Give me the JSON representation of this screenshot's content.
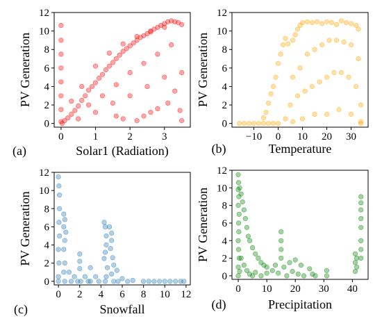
{
  "chart_data": [
    {
      "id": "a",
      "type": "scatter",
      "panel_label": "(a)",
      "xlabel": "Solar1 (Radiation)",
      "ylabel": "PV Generation",
      "xticks": [
        0,
        1,
        2,
        3
      ],
      "yticks": [
        0,
        2,
        4,
        6,
        8,
        10,
        12
      ],
      "xlim": [
        -0.2,
        3.75
      ],
      "ylim": [
        -0.4,
        12
      ],
      "color": "#ff0000",
      "points": [
        [
          0.0,
          10.6
        ],
        [
          0.0,
          9.0
        ],
        [
          0.0,
          7.5
        ],
        [
          0.0,
          6.0
        ],
        [
          0.0,
          4.5
        ],
        [
          0.0,
          3.0
        ],
        [
          0.0,
          1.5
        ],
        [
          0.0,
          0.2
        ],
        [
          0.03,
          0.0
        ],
        [
          0.1,
          0.3
        ],
        [
          0.2,
          0.6
        ],
        [
          0.3,
          1.0
        ],
        [
          0.4,
          1.4
        ],
        [
          0.5,
          1.9
        ],
        [
          0.6,
          2.5
        ],
        [
          0.7,
          3.0
        ],
        [
          0.8,
          3.6
        ],
        [
          0.9,
          4.0
        ],
        [
          1.0,
          4.4
        ],
        [
          1.1,
          4.9
        ],
        [
          1.2,
          5.3
        ],
        [
          1.3,
          5.8
        ],
        [
          1.4,
          6.2
        ],
        [
          1.5,
          6.6
        ],
        [
          1.6,
          7.0
        ],
        [
          1.7,
          7.4
        ],
        [
          1.8,
          7.8
        ],
        [
          1.9,
          8.1
        ],
        [
          2.0,
          8.4
        ],
        [
          2.1,
          8.7
        ],
        [
          2.2,
          9.0
        ],
        [
          2.3,
          9.3
        ],
        [
          2.4,
          9.5
        ],
        [
          2.5,
          9.7
        ],
        [
          2.6,
          9.9
        ],
        [
          2.7,
          10.2
        ],
        [
          2.8,
          10.4
        ],
        [
          2.9,
          10.6
        ],
        [
          3.0,
          10.8
        ],
        [
          3.1,
          11.0
        ],
        [
          3.2,
          11.1
        ],
        [
          3.3,
          11.0
        ],
        [
          3.4,
          10.9
        ],
        [
          3.5,
          10.7
        ],
        [
          0.5,
          0.5
        ],
        [
          1.0,
          1.2
        ],
        [
          1.5,
          2.2
        ],
        [
          2.0,
          3.0
        ],
        [
          2.5,
          4.0
        ],
        [
          3.0,
          5.0
        ],
        [
          3.5,
          5.5
        ],
        [
          3.3,
          3.5
        ],
        [
          3.45,
          1.4
        ],
        [
          3.5,
          0.3
        ],
        [
          1.6,
          0.8
        ],
        [
          1.8,
          0.5
        ],
        [
          2.2,
          0.3
        ],
        [
          2.4,
          0.8
        ],
        [
          2.6,
          1.2
        ],
        [
          2.8,
          1.6
        ],
        [
          3.1,
          2.2
        ],
        [
          0.8,
          2.0
        ],
        [
          1.2,
          3.0
        ],
        [
          1.6,
          4.2
        ],
        [
          2.0,
          5.5
        ],
        [
          2.4,
          6.5
        ],
        [
          2.8,
          7.5
        ],
        [
          3.2,
          8.5
        ],
        [
          0.3,
          2.4
        ],
        [
          0.6,
          4.0
        ],
        [
          1.0,
          6.2
        ],
        [
          1.4,
          7.6
        ],
        [
          1.8,
          8.6
        ],
        [
          2.2,
          9.4
        ],
        [
          2.6,
          10.0
        ],
        [
          3.0,
          10.4
        ]
      ]
    },
    {
      "id": "b",
      "type": "scatter",
      "panel_label": "(b)",
      "xlabel": "Temperature",
      "ylabel": "PV Generation",
      "xticks": [
        -10,
        0,
        10,
        20,
        30
      ],
      "yticks": [
        0,
        2,
        4,
        6,
        8,
        10,
        12
      ],
      "xlim": [
        -19,
        37
      ],
      "ylim": [
        -0.4,
        12
      ],
      "color": "#ffa500",
      "points": [
        [
          -16,
          0.0
        ],
        [
          -14,
          0.0
        ],
        [
          -12,
          0.0
        ],
        [
          -10,
          0.0
        ],
        [
          -8,
          0.0
        ],
        [
          -6,
          0.0
        ],
        [
          -4,
          0.0
        ],
        [
          -2,
          0.0
        ],
        [
          0,
          0.0
        ],
        [
          -6,
          0.6
        ],
        [
          -5,
          1.2
        ],
        [
          -4,
          2.2
        ],
        [
          -3,
          3.2
        ],
        [
          -2,
          4.0
        ],
        [
          -1,
          5.0
        ],
        [
          0,
          6.5
        ],
        [
          1,
          7.5
        ],
        [
          2,
          8.5
        ],
        [
          3,
          9.2
        ],
        [
          4,
          8.6
        ],
        [
          6,
          9.0
        ],
        [
          7,
          9.6
        ],
        [
          8,
          10.2
        ],
        [
          9,
          10.6
        ],
        [
          10,
          10.9
        ],
        [
          12,
          11.0
        ],
        [
          14,
          10.9
        ],
        [
          16,
          11.0
        ],
        [
          18,
          10.8
        ],
        [
          20,
          11.0
        ],
        [
          22,
          10.9
        ],
        [
          24,
          10.7
        ],
        [
          26,
          11.1
        ],
        [
          28,
          10.9
        ],
        [
          30,
          10.8
        ],
        [
          32,
          10.6
        ],
        [
          33,
          10.2
        ],
        [
          6,
          5.0
        ],
        [
          9,
          6.0
        ],
        [
          12,
          7.5
        ],
        [
          15,
          8.0
        ],
        [
          18,
          8.5
        ],
        [
          21,
          9.0
        ],
        [
          24,
          9.0
        ],
        [
          27,
          8.8
        ],
        [
          30,
          8.5
        ],
        [
          33,
          7.0
        ],
        [
          5,
          2.0
        ],
        [
          8,
          3.0
        ],
        [
          11,
          3.5
        ],
        [
          14,
          4.0
        ],
        [
          17,
          4.5
        ],
        [
          20,
          5.0
        ],
        [
          23,
          5.5
        ],
        [
          26,
          5.5
        ],
        [
          29,
          5.0
        ],
        [
          32,
          4.0
        ],
        [
          34,
          2.0
        ],
        [
          3,
          0.5
        ],
        [
          6,
          0.2
        ],
        [
          10,
          0.5
        ],
        [
          15,
          1.0
        ],
        [
          20,
          1.0
        ],
        [
          25,
          1.5
        ],
        [
          30,
          1.0
        ],
        [
          34,
          0.2
        ],
        [
          34,
          0.0
        ]
      ]
    },
    {
      "id": "c",
      "type": "scatter",
      "panel_label": "(c)",
      "xlabel": "Snowfall",
      "ylabel": "PV Generation",
      "xticks": [
        0,
        2,
        4,
        6,
        8,
        10,
        12
      ],
      "yticks": [
        0,
        2,
        4,
        6,
        8,
        10,
        12
      ],
      "xlim": [
        -0.4,
        12.4
      ],
      "ylim": [
        -0.4,
        12
      ],
      "color": "#1f77b4",
      "points": [
        [
          0.0,
          11.5
        ],
        [
          0.05,
          10.5
        ],
        [
          0.1,
          9.5
        ],
        [
          0.1,
          8.0
        ],
        [
          0.05,
          6.5
        ],
        [
          0.1,
          5.0
        ],
        [
          0.0,
          3.5
        ],
        [
          0.05,
          2.0
        ],
        [
          0.0,
          0.5
        ],
        [
          0.0,
          0.0
        ],
        [
          0.5,
          7.4
        ],
        [
          0.6,
          6.8
        ],
        [
          0.5,
          6.0
        ],
        [
          0.7,
          5.4
        ],
        [
          0.6,
          4.5
        ],
        [
          0.5,
          3.5
        ],
        [
          0.6,
          2.0
        ],
        [
          0.5,
          1.0
        ],
        [
          0.6,
          0.0
        ],
        [
          1.0,
          1.0
        ],
        [
          1.2,
          0.0
        ],
        [
          1.5,
          0.5
        ],
        [
          1.8,
          0.0
        ],
        [
          2.0,
          3.0
        ],
        [
          2.0,
          2.2
        ],
        [
          2.0,
          1.4
        ],
        [
          2.1,
          0.0
        ],
        [
          2.5,
          0.5
        ],
        [
          2.8,
          0.0
        ],
        [
          3.0,
          1.5
        ],
        [
          3.0,
          0.0
        ],
        [
          3.5,
          0.5
        ],
        [
          3.8,
          0.0
        ],
        [
          4.3,
          6.5
        ],
        [
          4.4,
          6.0
        ],
        [
          4.5,
          5.0
        ],
        [
          4.5,
          4.0
        ],
        [
          4.4,
          3.2
        ],
        [
          4.3,
          2.5
        ],
        [
          4.6,
          1.5
        ],
        [
          4.5,
          0.5
        ],
        [
          4.4,
          0.0
        ],
        [
          4.8,
          6.0
        ],
        [
          5.0,
          5.3
        ],
        [
          5.0,
          4.5
        ],
        [
          4.9,
          3.6
        ],
        [
          5.1,
          2.6
        ],
        [
          5.2,
          1.8
        ],
        [
          5.0,
          0.8
        ],
        [
          5.2,
          0.0
        ],
        [
          5.5,
          1.2
        ],
        [
          5.6,
          0.0
        ],
        [
          6.0,
          0.3
        ],
        [
          6.5,
          0.0
        ],
        [
          7.0,
          0.1
        ],
        [
          8.0,
          0.0
        ],
        [
          8.5,
          0.0
        ],
        [
          9.0,
          0.0
        ],
        [
          9.5,
          0.0
        ],
        [
          10.0,
          0.0
        ],
        [
          10.5,
          0.0
        ],
        [
          11.0,
          0.0
        ],
        [
          11.5,
          0.0
        ],
        [
          11.8,
          0.0
        ]
      ]
    },
    {
      "id": "d",
      "type": "scatter",
      "panel_label": "(d)",
      "xlabel": "Precipitation",
      "ylabel": "PV Generation",
      "xticks": [
        0,
        10,
        20,
        30,
        40
      ],
      "yticks": [
        0,
        2,
        4,
        6,
        8,
        10,
        12
      ],
      "xlim": [
        -2.2,
        45.5
      ],
      "ylim": [
        -0.4,
        12
      ],
      "color": "#008000",
      "points": [
        [
          0.0,
          11.5
        ],
        [
          0.1,
          10.6
        ],
        [
          0.0,
          9.8
        ],
        [
          0.2,
          9.0
        ],
        [
          0.0,
          8.0
        ],
        [
          0.3,
          7.0
        ],
        [
          0.1,
          6.0
        ],
        [
          0.2,
          5.0
        ],
        [
          0.0,
          4.0
        ],
        [
          0.1,
          3.0
        ],
        [
          0.3,
          2.0
        ],
        [
          0.0,
          1.0
        ],
        [
          0.0,
          0.0
        ],
        [
          0.5,
          0.5
        ],
        [
          0.5,
          10.0
        ],
        [
          1.0,
          9.3
        ],
        [
          1.5,
          8.4
        ],
        [
          2.0,
          7.5
        ],
        [
          2.5,
          6.5
        ],
        [
          3.0,
          5.5
        ],
        [
          3.5,
          4.5
        ],
        [
          4.0,
          4.0
        ],
        [
          5.0,
          3.2
        ],
        [
          6.0,
          2.5
        ],
        [
          7.0,
          2.0
        ],
        [
          8.0,
          1.5
        ],
        [
          9.0,
          1.2
        ],
        [
          10.0,
          1.0
        ],
        [
          1.0,
          2.0
        ],
        [
          2.0,
          1.2
        ],
        [
          3.0,
          0.6
        ],
        [
          4.0,
          0.2
        ],
        [
          5.0,
          0.0
        ],
        [
          6.0,
          0.4
        ],
        [
          8.0,
          0.0
        ],
        [
          10.0,
          0.3
        ],
        [
          12.0,
          0.6
        ],
        [
          13.0,
          1.2
        ],
        [
          14.0,
          0.3
        ],
        [
          15.0,
          5.0
        ],
        [
          15.0,
          4.0
        ],
        [
          15.0,
          3.0
        ],
        [
          15.0,
          2.0
        ],
        [
          16.0,
          1.0
        ],
        [
          17.0,
          0.0
        ],
        [
          18.0,
          1.5
        ],
        [
          19.0,
          0.5
        ],
        [
          20.0,
          1.8
        ],
        [
          21.0,
          0.2
        ],
        [
          22.0,
          1.2
        ],
        [
          23.0,
          0.0
        ],
        [
          25.0,
          0.8
        ],
        [
          26.0,
          0.2
        ],
        [
          27.0,
          0.0
        ],
        [
          31.0,
          0.6
        ],
        [
          31.0,
          0.0
        ],
        [
          41.0,
          2.5
        ],
        [
          41.5,
          2.0
        ],
        [
          41.0,
          1.5
        ],
        [
          41.5,
          1.0
        ],
        [
          41.0,
          0.5
        ],
        [
          43.0,
          9.0
        ],
        [
          43.0,
          8.3
        ],
        [
          43.0,
          7.5
        ],
        [
          43.0,
          6.5
        ],
        [
          43.0,
          5.5
        ],
        [
          43.0,
          4.0
        ],
        [
          43.0,
          3.0
        ],
        [
          43.0,
          2.0
        ]
      ]
    }
  ]
}
